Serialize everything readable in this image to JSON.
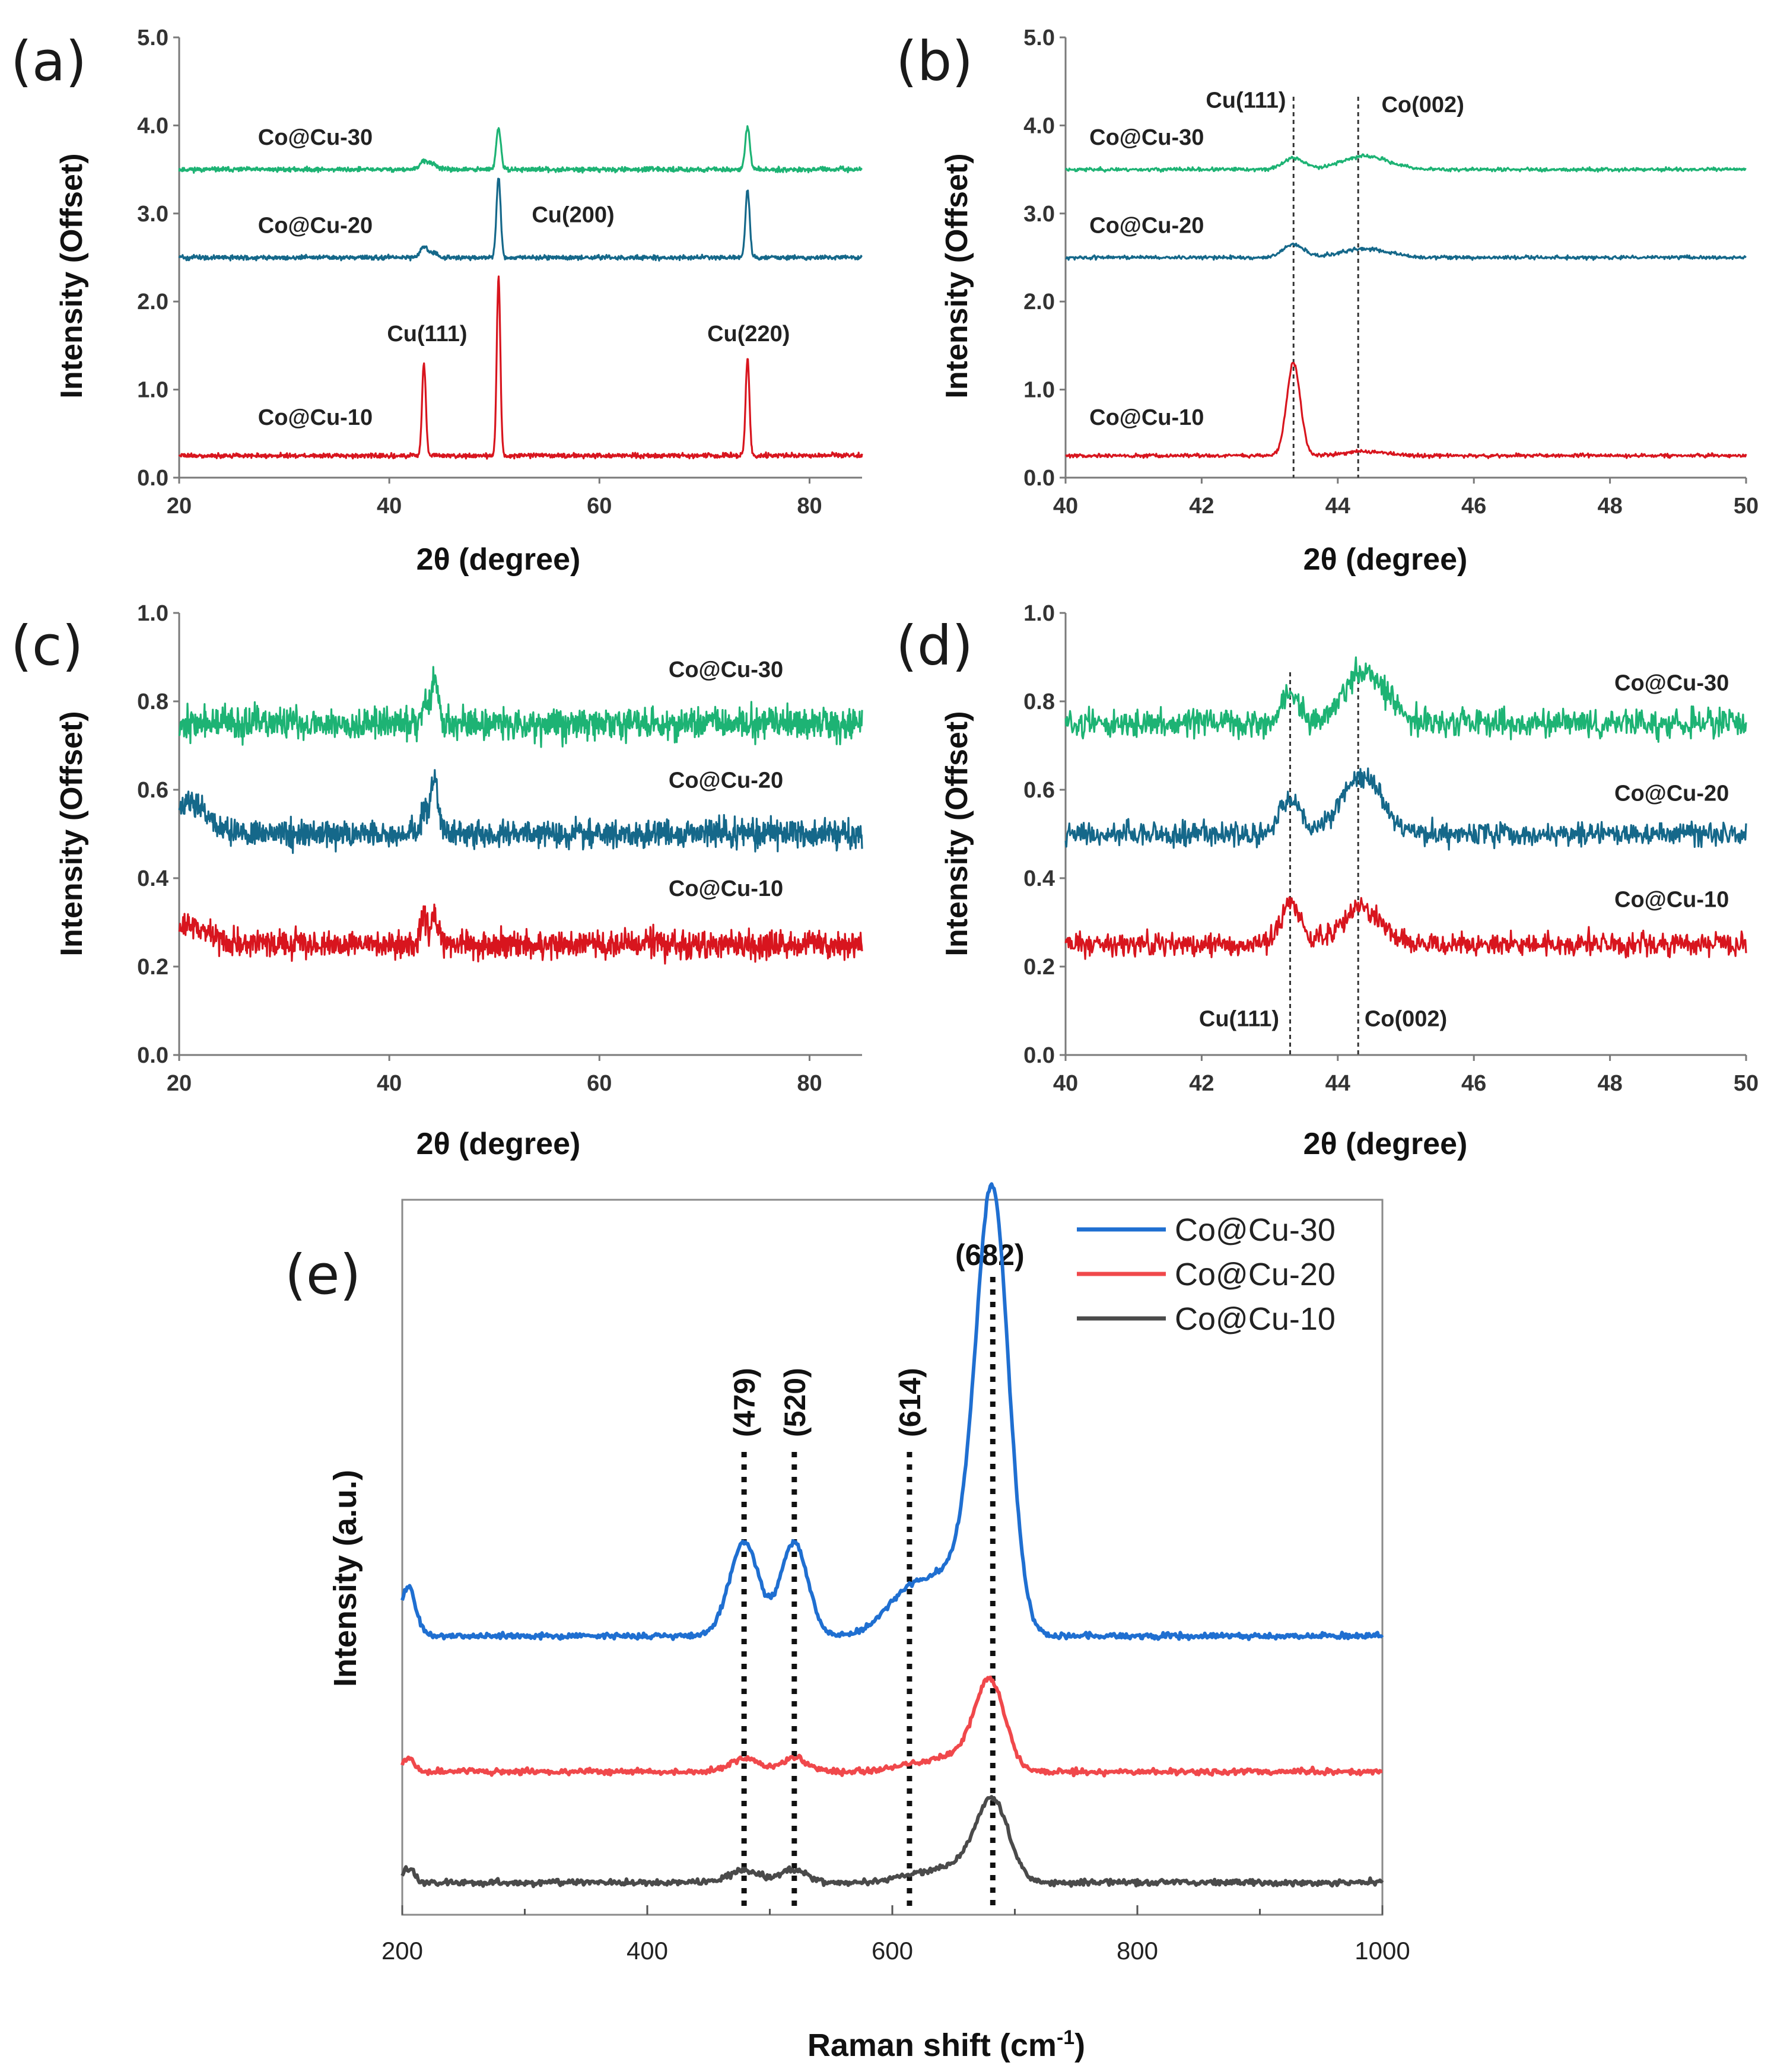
{
  "colors": {
    "green": "#1db374",
    "teal": "#15688a",
    "red": "#d8151e",
    "blue": "#1f6fd1",
    "pink": "#f0484b",
    "gray": "#4a4a4a"
  },
  "chart_data": [
    {
      "panel": "(a)",
      "type": "line",
      "xlabel": "2θ (degree)",
      "ylabel": "Intensity (Offset)",
      "xlim": [
        20,
        85
      ],
      "ylim": [
        0,
        5
      ],
      "xticks": [
        "20",
        "40",
        "60",
        "80"
      ],
      "yticks": [
        "0.0",
        "1.0",
        "2.0",
        "3.0",
        "4.0",
        "5.0"
      ],
      "series": [
        {
          "name": "Co@Cu-30",
          "color_key": "green",
          "baseline": 3.5,
          "noise": 0.025,
          "peaks": [
            [
              43.3,
              0.1,
              0.35
            ],
            [
              44.2,
              0.06,
              0.4
            ],
            [
              50.4,
              0.47,
              0.22
            ],
            [
              74.1,
              0.48,
              0.22
            ]
          ]
        },
        {
          "name": "Co@Cu-20",
          "color_key": "teal",
          "baseline": 2.5,
          "noise": 0.025,
          "peaks": [
            [
              43.3,
              0.12,
              0.35
            ],
            [
              44.2,
              0.05,
              0.4
            ],
            [
              50.4,
              0.9,
              0.2
            ],
            [
              74.1,
              0.78,
              0.2
            ]
          ]
        },
        {
          "name": "Co@Cu-10",
          "color_key": "red",
          "baseline": 0.25,
          "noise": 0.025,
          "peaks": [
            [
              43.3,
              1.04,
              0.18
            ],
            [
              50.4,
              2.03,
              0.17
            ],
            [
              74.1,
              1.1,
              0.18
            ]
          ]
        }
      ],
      "series_labels": [
        {
          "text": "Co@Cu-30",
          "x": 27.5,
          "y": 3.78
        },
        {
          "text": "Co@Cu-20",
          "x": 27.5,
          "y": 2.78
        },
        {
          "text": "Co@Cu-10",
          "x": 27.5,
          "y": 0.6
        }
      ],
      "annotations": [
        {
          "text": "Cu(111)",
          "x": 43.6,
          "y": 1.55
        },
        {
          "text": "Cu(200)",
          "x": 57.5,
          "y": 2.9
        },
        {
          "text": "Cu(220)",
          "x": 74.2,
          "y": 1.55
        }
      ]
    },
    {
      "panel": "(b)",
      "type": "line",
      "xlabel": "2θ (degree)",
      "ylabel": "Intensity (Offset)",
      "xlim": [
        40,
        50
      ],
      "ylim": [
        0,
        5
      ],
      "xticks": [
        "40",
        "42",
        "44",
        "46",
        "48",
        "50"
      ],
      "yticks": [
        "0.0",
        "1.0",
        "2.0",
        "3.0",
        "4.0",
        "5.0"
      ],
      "vlines": [
        43.35,
        44.3
      ],
      "series": [
        {
          "name": "Co@Cu-30",
          "color_key": "green",
          "baseline": 3.5,
          "noise": 0.02,
          "peaks": [
            [
              43.35,
              0.13,
              0.15
            ],
            [
              44.4,
              0.15,
              0.35
            ]
          ]
        },
        {
          "name": "Co@Cu-20",
          "color_key": "teal",
          "baseline": 2.5,
          "noise": 0.02,
          "peaks": [
            [
              43.35,
              0.15,
              0.15
            ],
            [
              44.4,
              0.1,
              0.35
            ]
          ]
        },
        {
          "name": "Co@Cu-10",
          "color_key": "red",
          "baseline": 0.25,
          "noise": 0.02,
          "peaks": [
            [
              43.35,
              1.05,
              0.1
            ],
            [
              44.4,
              0.05,
              0.3
            ]
          ]
        }
      ],
      "series_labels": [
        {
          "text": "Co@Cu-30",
          "x": 40.35,
          "y": 3.78
        },
        {
          "text": "Co@Cu-20",
          "x": 40.35,
          "y": 2.78
        },
        {
          "text": "Co@Cu-10",
          "x": 40.35,
          "y": 0.6
        }
      ],
      "annotations": [
        {
          "text": "Cu(111)",
          "x": 42.65,
          "y": 4.2
        },
        {
          "text": "Co(002)",
          "x": 45.25,
          "y": 4.15
        }
      ]
    },
    {
      "panel": "(c)",
      "type": "line",
      "xlabel": "2θ (degree)",
      "ylabel": "Intensity (Offset)",
      "xlim": [
        20,
        85
      ],
      "ylim": [
        0,
        1
      ],
      "xticks": [
        "20",
        "40",
        "60",
        "80"
      ],
      "yticks": [
        "0.0",
        "0.2",
        "0.4",
        "0.6",
        "0.8",
        "1.0"
      ],
      "series": [
        {
          "name": "Co@Cu-30",
          "color_key": "green",
          "baseline": 0.75,
          "noise": 0.035,
          "peaks": [
            [
              43.3,
              0.05,
              0.3
            ],
            [
              44.3,
              0.1,
              0.35
            ]
          ]
        },
        {
          "name": "Co@Cu-20",
          "color_key": "teal",
          "baseline": 0.5,
          "noise": 0.03,
          "peaks": [
            [
              21,
              0.07,
              1.5
            ],
            [
              43.3,
              0.05,
              0.3
            ],
            [
              44.3,
              0.13,
              0.35
            ]
          ]
        },
        {
          "name": "Co@Cu-10",
          "color_key": "red",
          "baseline": 0.25,
          "noise": 0.03,
          "peaks": [
            [
              21,
              0.04,
              2
            ],
            [
              43.3,
              0.07,
              0.3
            ],
            [
              44.3,
              0.06,
              0.35
            ]
          ]
        }
      ],
      "series_labels": [
        {
          "text": "Co@Cu-30",
          "x": 77.5,
          "y": 0.855
        },
        {
          "text": "Co@Cu-20",
          "x": 77.5,
          "y": 0.605
        },
        {
          "text": "Co@Cu-10",
          "x": 77.5,
          "y": 0.36
        }
      ],
      "annotations": []
    },
    {
      "panel": "(d)",
      "type": "line",
      "xlabel": "2θ (degree)",
      "ylabel": "Intensity (Offset)",
      "xlim": [
        40,
        50
      ],
      "ylim": [
        0,
        1
      ],
      "xticks": [
        "40",
        "42",
        "44",
        "46",
        "48",
        "50"
      ],
      "yticks": [
        "0.0",
        "0.2",
        "0.4",
        "0.6",
        "0.8",
        "1.0"
      ],
      "vlines": [
        43.3,
        44.3
      ],
      "series": [
        {
          "name": "Co@Cu-30",
          "color_key": "green",
          "baseline": 0.75,
          "noise": 0.03,
          "peaks": [
            [
              43.3,
              0.07,
              0.12
            ],
            [
              44.4,
              0.12,
              0.3
            ]
          ]
        },
        {
          "name": "Co@Cu-20",
          "color_key": "teal",
          "baseline": 0.5,
          "noise": 0.025,
          "peaks": [
            [
              43.3,
              0.08,
              0.15
            ],
            [
              44.35,
              0.13,
              0.3
            ]
          ]
        },
        {
          "name": "Co@Cu-10",
          "color_key": "red",
          "baseline": 0.25,
          "noise": 0.025,
          "peaks": [
            [
              43.3,
              0.09,
              0.15
            ],
            [
              44.35,
              0.08,
              0.3
            ]
          ]
        }
      ],
      "series_labels": [
        {
          "text": "Co@Cu-30",
          "x": 49.75,
          "y": 0.825
        },
        {
          "text": "Co@Cu-20",
          "x": 49.75,
          "y": 0.575
        },
        {
          "text": "Co@Cu-10",
          "x": 49.75,
          "y": 0.335
        }
      ],
      "annotations": [
        {
          "text": "Cu(111)",
          "x": 42.55,
          "y": 0.065
        },
        {
          "text": "Co(002)",
          "x": 45.0,
          "y": 0.065
        }
      ]
    },
    {
      "panel": "(e)",
      "type": "line",
      "xlabel": "Raman shift (cm",
      "xlabel_sup": "-1",
      "xlabel_end": ")",
      "ylabel": "Intensity (a.u.)",
      "xlim": [
        200,
        1000
      ],
      "ylim": [
        0,
        1
      ],
      "xticks": [
        "200",
        "400",
        "600",
        "800",
        "1000"
      ],
      "vlines": [
        479,
        520,
        614,
        682
      ],
      "peak_labels": [
        "(479)",
        "(520)",
        "(614)",
        "(682)"
      ],
      "legend": [
        "Co@Cu-30",
        "Co@Cu-20",
        "Co@Cu-10"
      ],
      "series": [
        {
          "name": "Co@Cu-30",
          "color_key": "blue",
          "baseline": 0.39,
          "noise": 0.004,
          "peaks": [
            [
              205,
              0.07,
              6
            ],
            [
              479,
              0.132,
              12
            ],
            [
              520,
              0.132,
              11
            ],
            [
              614,
              0.06,
              20
            ],
            [
              682,
              0.57,
              13
            ],
            [
              660,
              0.1,
              22
            ]
          ]
        },
        {
          "name": "Co@Cu-20",
          "color_key": "pink",
          "baseline": 0.2,
          "noise": 0.004,
          "peaks": [
            [
              205,
              0.02,
              5
            ],
            [
              479,
              0.018,
              12
            ],
            [
              520,
              0.018,
              11
            ],
            [
              614,
              0.008,
              15
            ],
            [
              680,
              0.12,
              12
            ],
            [
              655,
              0.025,
              20
            ]
          ]
        },
        {
          "name": "Co@Cu-10",
          "color_key": "gray",
          "baseline": 0.045,
          "noise": 0.004,
          "peaks": [
            [
              205,
              0.02,
              5
            ],
            [
              479,
              0.018,
              12
            ],
            [
              520,
              0.018,
              11
            ],
            [
              614,
              0.008,
              15
            ],
            [
              682,
              0.11,
              13
            ],
            [
              655,
              0.025,
              20
            ]
          ]
        }
      ]
    }
  ]
}
